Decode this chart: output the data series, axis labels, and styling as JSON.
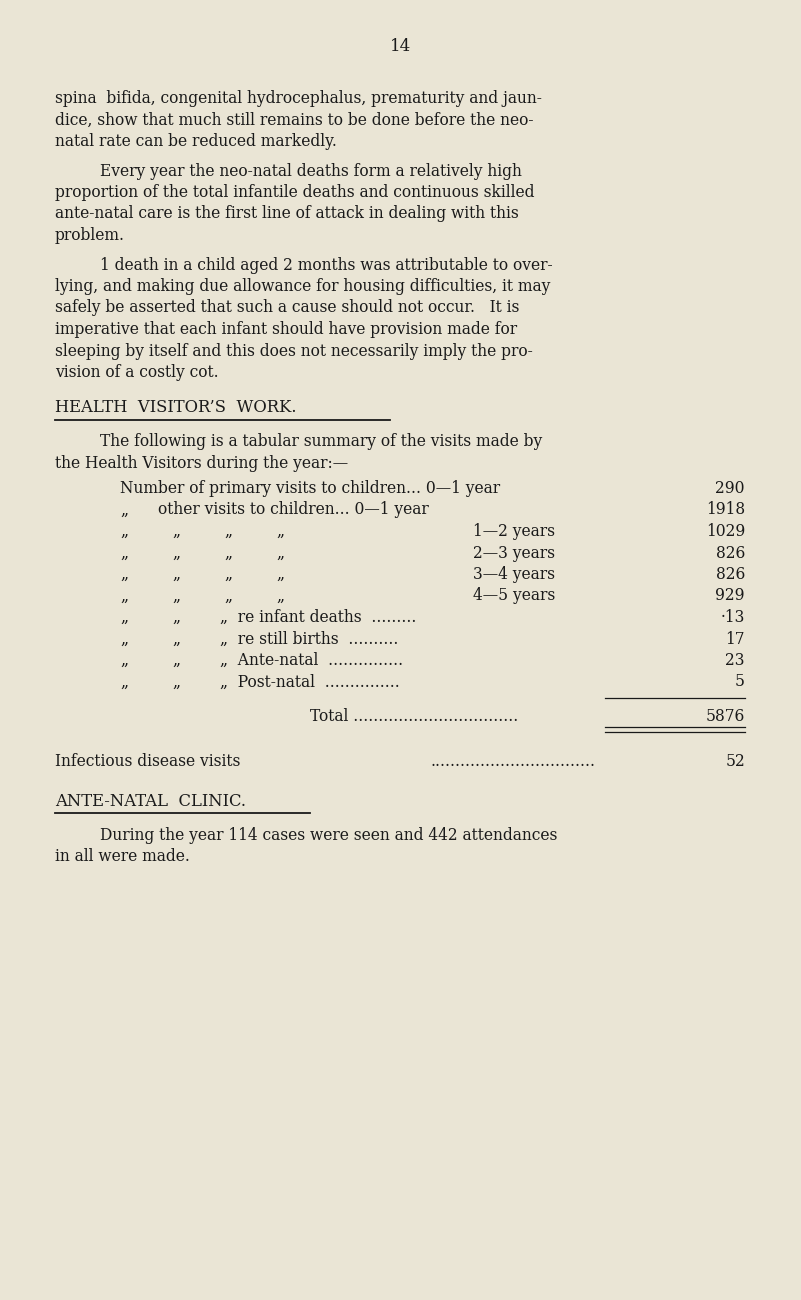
{
  "background_color": "#EAE5D5",
  "text_color": "#1a1a1a",
  "page_number": "14",
  "para1_lines": [
    "spina  bifida, congenital hydrocephalus, prematurity and jaun-",
    "dice, show that much still remains to be done before the neo-",
    "natal rate can be reduced markedly."
  ],
  "para2_lines": [
    "Every year the neo-natal deaths form a relatively high",
    "proportion of the total infantile deaths and continuous skilled",
    "ante-natal care is the first line of attack in dealing with this",
    "problem."
  ],
  "para3_lines": [
    "1 death in a child aged 2 months was attributable to over-",
    "lying, and making due allowance for housing difficulties, it may",
    "safely be asserted that such a cause should not occur.   It is",
    "imperative that each infant should have provision made for",
    "sleeping by itself and this does not necessarily imply the pro-",
    "vision of a costly cot."
  ],
  "heading1": "HEALTH  VISITOR’S  WORK.",
  "intro_lines": [
    "The following is a tabular summary of the visits made by",
    "the Health Visitors during the year:—"
  ],
  "heading2": "ANTE-NATAL  CLINIC.",
  "para4_lines": [
    "During the year 114 cases were seen and 442 attendances",
    "in all were made."
  ]
}
